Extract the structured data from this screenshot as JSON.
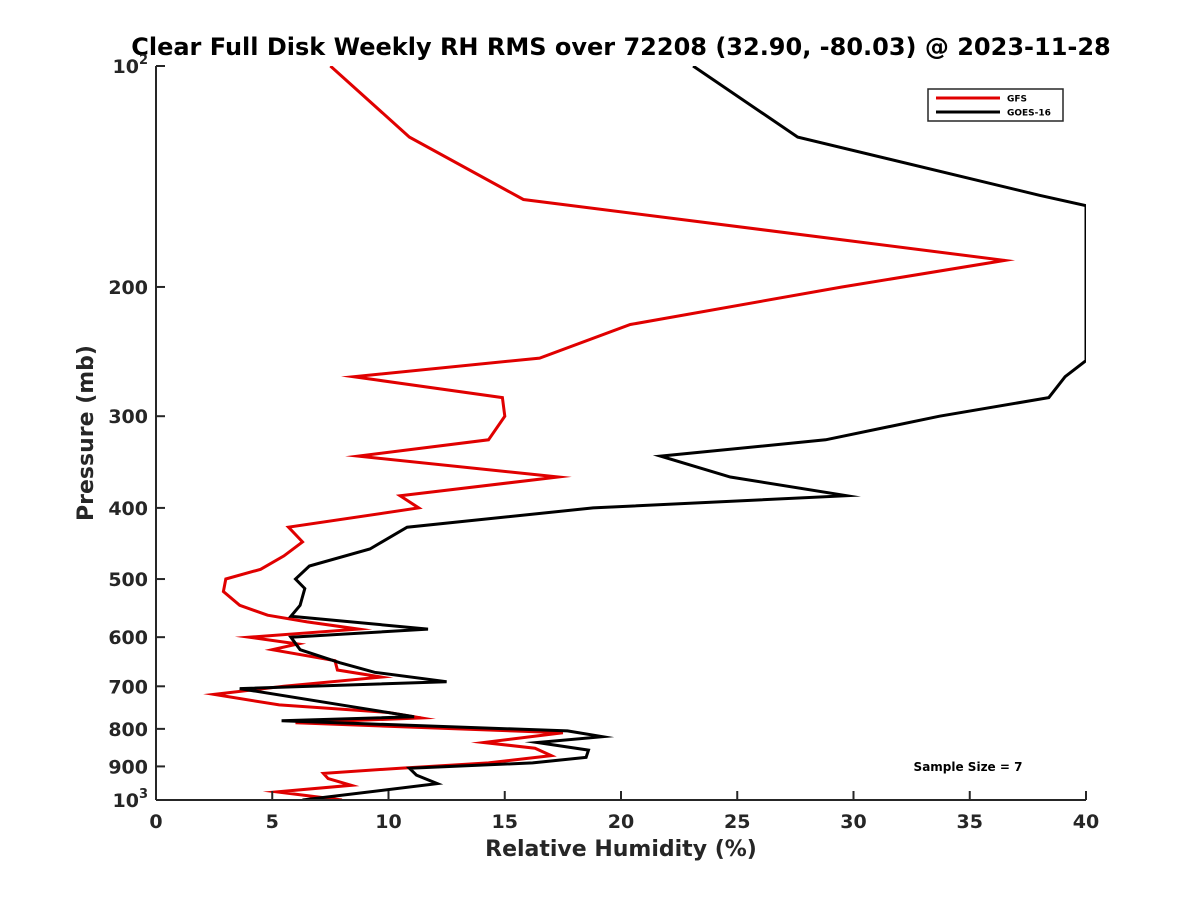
{
  "chart_data": {
    "type": "line",
    "title": "Clear Full Disk Weekly RH RMS over 72208 (32.90, -80.03) @ 2023-11-28",
    "xlabel": "Relative Humidity (%)",
    "ylabel": "Pressure (mb)",
    "xlim": [
      0,
      40
    ],
    "ylim": [
      100,
      1000
    ],
    "y_scale": "log",
    "y_reversed": true,
    "x_ticks": [
      0,
      5,
      10,
      15,
      20,
      25,
      30,
      35,
      40
    ],
    "x_tick_labels": [
      "0",
      "5",
      "10",
      "15",
      "20",
      "25",
      "30",
      "35",
      "40"
    ],
    "y_ticks": [
      100,
      200,
      300,
      400,
      500,
      600,
      700,
      800,
      900,
      1000
    ],
    "y_tick_labels": [
      {
        "base": "10",
        "sup": "2"
      },
      {
        "base": "200",
        "sup": ""
      },
      {
        "base": "300",
        "sup": ""
      },
      {
        "base": "400",
        "sup": ""
      },
      {
        "base": "500",
        "sup": ""
      },
      {
        "base": "600",
        "sup": ""
      },
      {
        "base": "700",
        "sup": ""
      },
      {
        "base": "800",
        "sup": ""
      },
      {
        "base": "900",
        "sup": ""
      },
      {
        "base": "10",
        "sup": "3"
      }
    ],
    "grid": false,
    "legend_position": "top-right",
    "annotation": "Sample Size = 7",
    "series": [
      {
        "name": "GFS",
        "color": "#e00000",
        "points": [
          [
            7.5,
            100
          ],
          [
            10.9,
            125
          ],
          [
            15.8,
            152
          ],
          [
            36.5,
            184
          ],
          [
            29.5,
            200
          ],
          [
            20.4,
            225
          ],
          [
            16.5,
            250
          ],
          [
            8.5,
            265
          ],
          [
            14.9,
            283
          ],
          [
            15.0,
            300
          ],
          [
            14.3,
            323
          ],
          [
            8.7,
            340
          ],
          [
            17.3,
            363
          ],
          [
            10.5,
            385
          ],
          [
            11.3,
            400
          ],
          [
            5.7,
            425
          ],
          [
            6.3,
            445
          ],
          [
            5.5,
            465
          ],
          [
            4.5,
            485
          ],
          [
            3.0,
            500
          ],
          [
            2.9,
            520
          ],
          [
            3.6,
            543
          ],
          [
            4.8,
            560
          ],
          [
            6.5,
            572
          ],
          [
            8.7,
            585
          ],
          [
            4.0,
            600
          ],
          [
            6.1,
            613
          ],
          [
            5.0,
            624
          ],
          [
            7.7,
            646
          ],
          [
            7.8,
            665
          ],
          [
            9.7,
            680
          ],
          [
            5.5,
            700
          ],
          [
            2.5,
            718
          ],
          [
            5.3,
            742
          ],
          [
            10.0,
            760
          ],
          [
            11.4,
            773
          ],
          [
            6.0,
            785
          ],
          [
            17.5,
            810
          ],
          [
            14.1,
            835
          ],
          [
            16.3,
            850
          ],
          [
            17.0,
            870
          ],
          [
            14.3,
            890
          ],
          [
            10.5,
            905
          ],
          [
            7.2,
            920
          ],
          [
            7.4,
            935
          ],
          [
            8.4,
            955
          ],
          [
            5.2,
            975
          ],
          [
            8.0,
            1000
          ]
        ]
      },
      {
        "name": "GOES-16",
        "color": "#000000",
        "points": [
          [
            23.1,
            100
          ],
          [
            27.6,
            125
          ],
          [
            38.0,
            150
          ],
          [
            40.0,
            155
          ],
          [
            40.0,
            252
          ],
          [
            39.1,
            265
          ],
          [
            38.4,
            283
          ],
          [
            33.7,
            300
          ],
          [
            28.8,
            323
          ],
          [
            21.7,
            340
          ],
          [
            24.7,
            363
          ],
          [
            29.7,
            385
          ],
          [
            18.8,
            400
          ],
          [
            10.8,
            425
          ],
          [
            9.2,
            455
          ],
          [
            6.6,
            480
          ],
          [
            6.0,
            500
          ],
          [
            6.4,
            515
          ],
          [
            6.2,
            543
          ],
          [
            5.8,
            562
          ],
          [
            11.7,
            585
          ],
          [
            5.8,
            600
          ],
          [
            6.2,
            624
          ],
          [
            7.9,
            650
          ],
          [
            9.4,
            670
          ],
          [
            12.5,
            690
          ],
          [
            3.6,
            705
          ],
          [
            8.3,
            745
          ],
          [
            11.1,
            770
          ],
          [
            5.4,
            780
          ],
          [
            17.7,
            805
          ],
          [
            19.2,
            820
          ],
          [
            16.4,
            835
          ],
          [
            18.6,
            855
          ],
          [
            18.5,
            875
          ],
          [
            16.2,
            890
          ],
          [
            10.9,
            905
          ],
          [
            11.2,
            925
          ],
          [
            12.1,
            950
          ],
          [
            6.3,
            1000
          ]
        ]
      }
    ]
  }
}
